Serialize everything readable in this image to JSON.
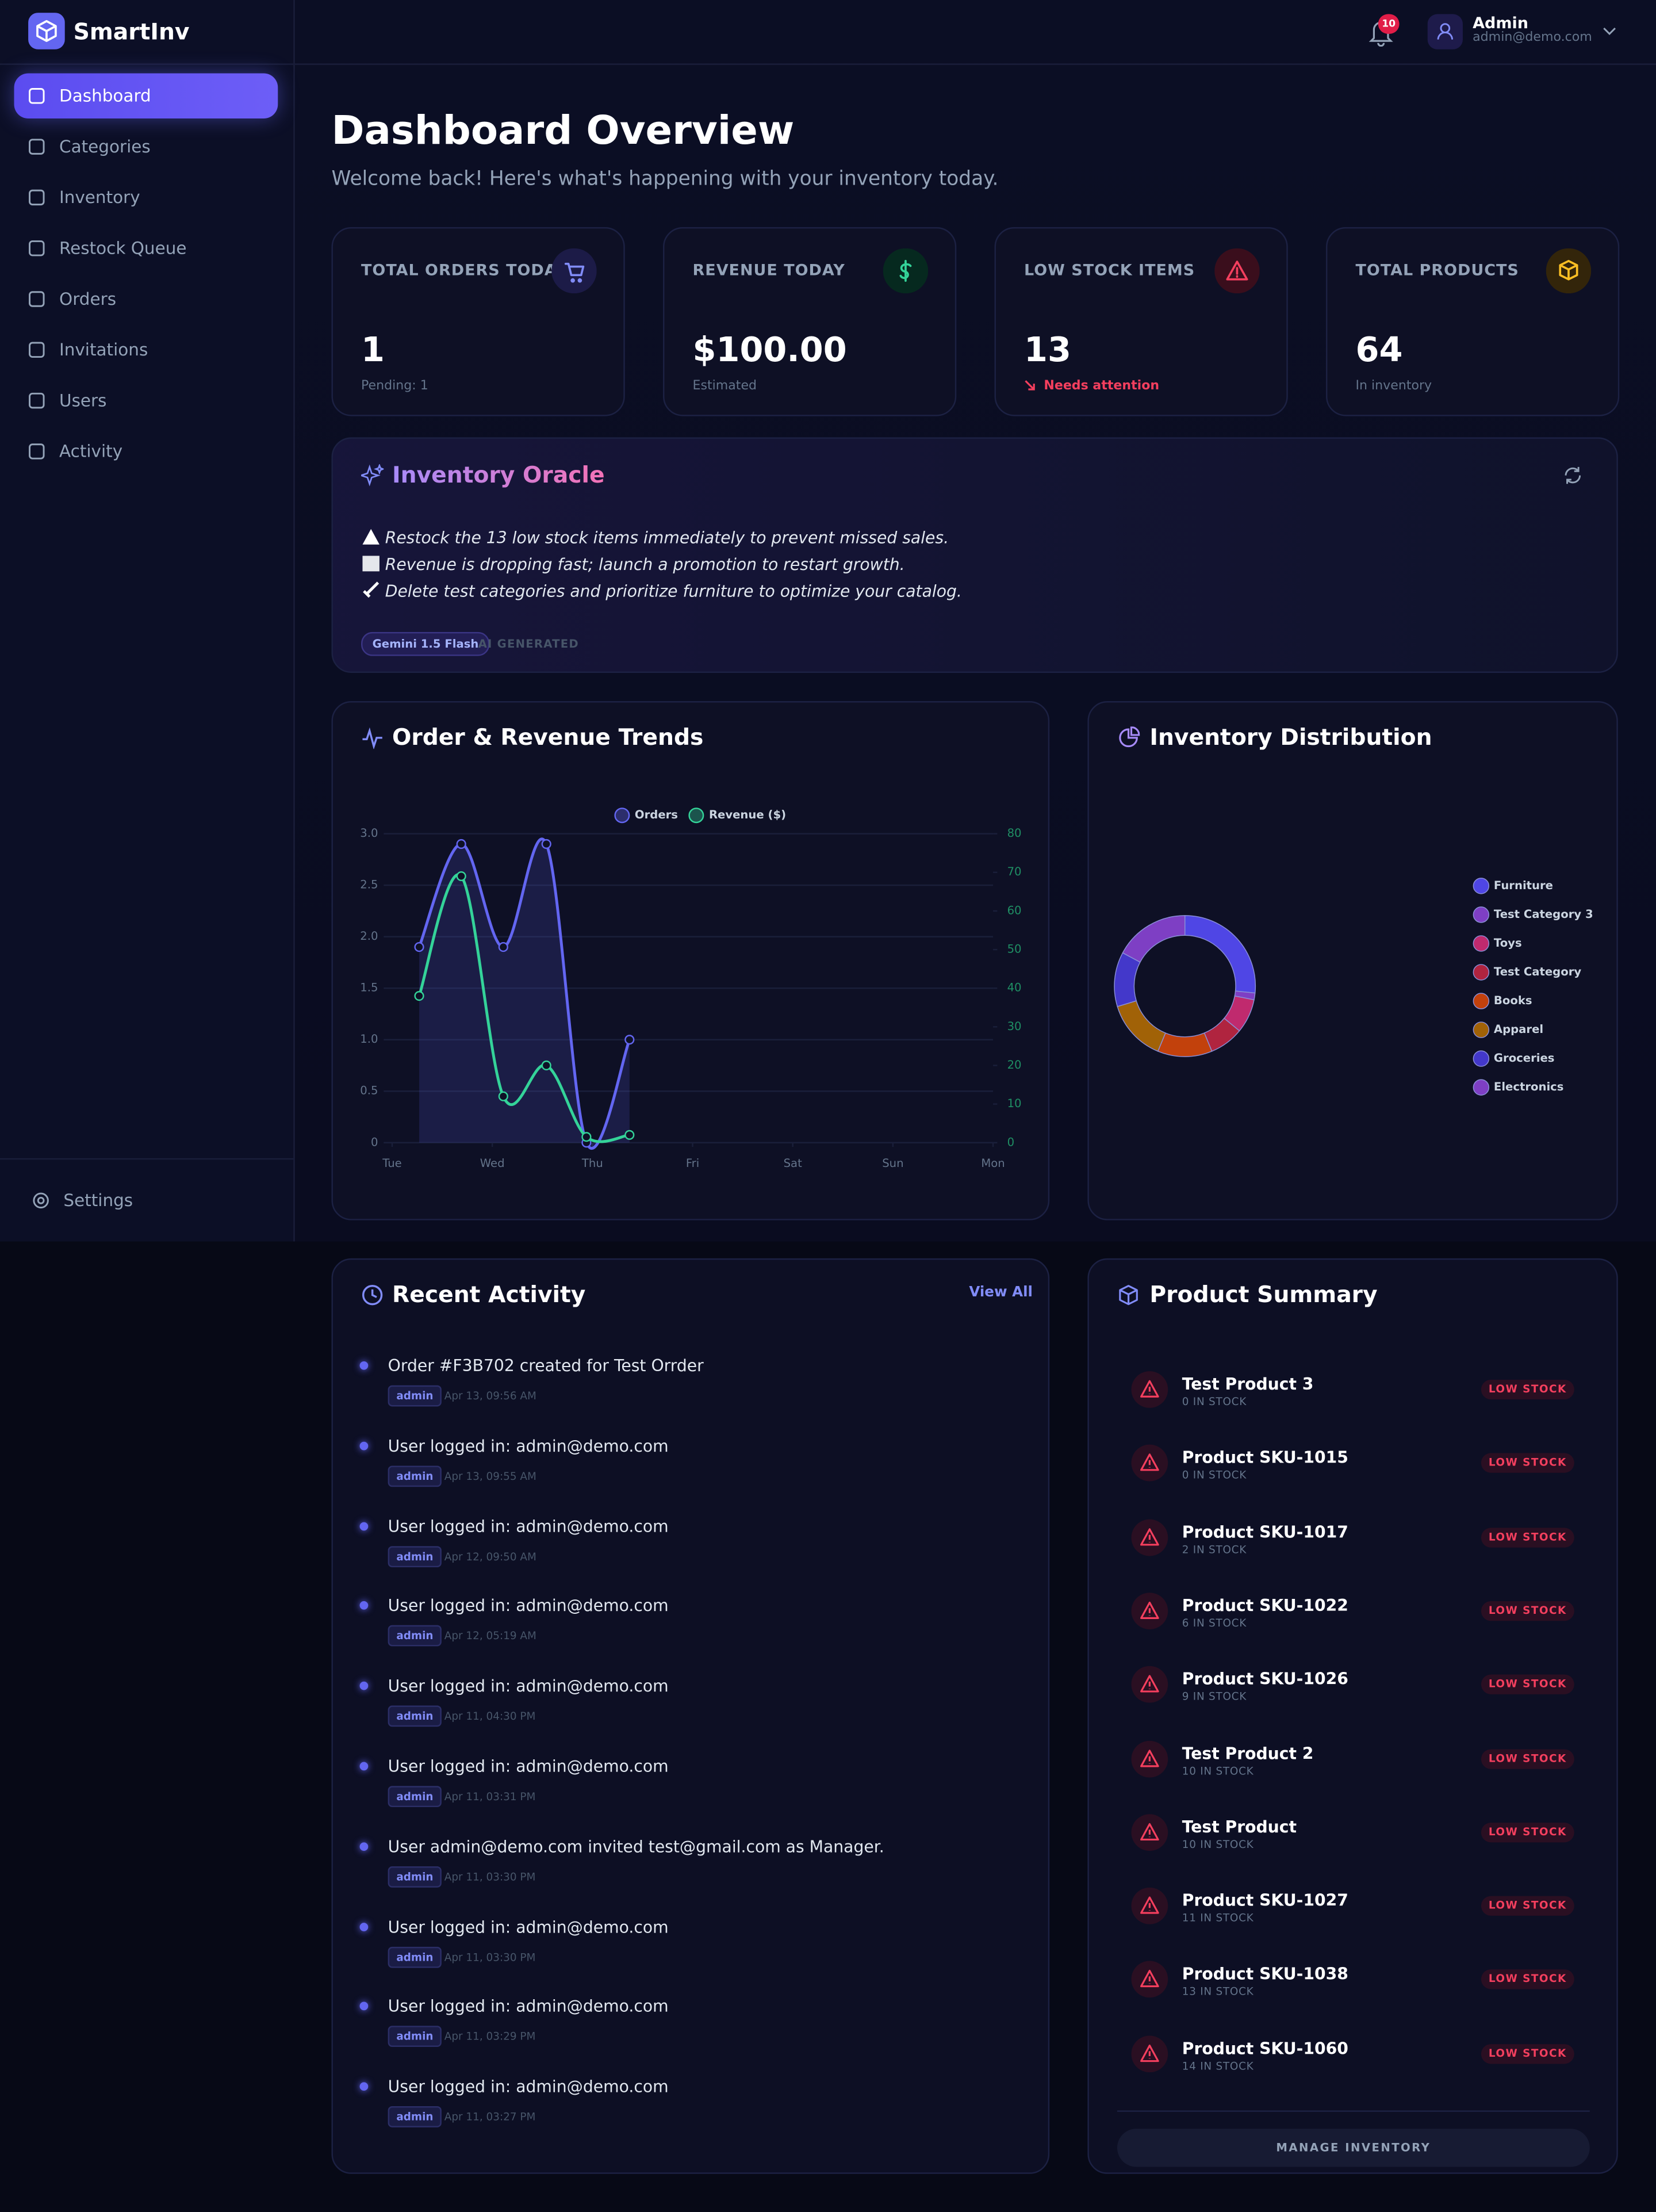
{
  "sidebar": {
    "brand": "SmartInv",
    "nav": [
      "Dashboard",
      "Categories",
      "Inventory",
      "Restock Queue",
      "Orders",
      "Invitations",
      "Users",
      "Activity"
    ],
    "settings": "Settings"
  },
  "header": {
    "notifications": "10",
    "user_name": "Admin",
    "user_email": "admin@demo.com"
  },
  "page": {
    "title": "Dashboard Overview",
    "subtitle": "Welcome back! Here's what's happening with your inventory today."
  },
  "stats": [
    {
      "label": "TOTAL ORDERS TODAY",
      "value": "1",
      "note": "Pending: 1"
    },
    {
      "label": "REVENUE TODAY",
      "value": "$100.00",
      "note": "Estimated"
    },
    {
      "label": "LOW STOCK ITEMS",
      "value": "13",
      "note": "Needs attention"
    },
    {
      "label": "TOTAL PRODUCTS",
      "value": "64",
      "note": "In inventory"
    }
  ],
  "oracle": {
    "title": "Inventory Oracle",
    "insights": [
      "Restock the 13 low stock items immediately to prevent missed sales.",
      "Revenue is dropping fast; launch a promotion to restart growth.",
      "Delete test categories and prioritize furniture to optimize your catalog."
    ],
    "model": "Gemini 1.5 Flash",
    "tag": "AI GENERATED"
  },
  "chart_data": [
    {
      "type": "line",
      "title": "Order & Revenue Trends",
      "x": [
        0.27,
        0.69,
        1.11,
        1.54,
        1.94,
        2.37
      ],
      "xlim": [
        0,
        6
      ],
      "xticks": [
        {
          "value": 0,
          "label": "Tue"
        },
        {
          "value": 1,
          "label": "Wed"
        },
        {
          "value": 2,
          "label": "Thu"
        },
        {
          "value": 3,
          "label": "Fri"
        },
        {
          "value": 4,
          "label": "Sat"
        },
        {
          "value": 5,
          "label": "Sun"
        },
        {
          "value": 6,
          "label": "Mon"
        }
      ],
      "ylim": [
        0,
        3
      ],
      "yticks": [
        0,
        0.5,
        {
          "value": 1,
          "label": "1.0"
        },
        1.5,
        {
          "value": 2,
          "label": "2.0"
        },
        2.5,
        {
          "value": 3,
          "label": "3.0"
        }
      ],
      "y2lim": [
        0,
        80
      ],
      "y2ticks": [
        0,
        10,
        20,
        30,
        40,
        50,
        60,
        70,
        80
      ],
      "grid": true,
      "legend": "top",
      "series": [
        {
          "name": "Orders",
          "color": "#6366f1",
          "area": true,
          "values": [
            1.9,
            2.9,
            1.9,
            2.9,
            0,
            1.0
          ]
        },
        {
          "name": "Revenue ($)",
          "color": "#34d399",
          "axis": "y2",
          "values": [
            38,
            69,
            12,
            20,
            1.5,
            2
          ]
        }
      ]
    },
    {
      "type": "doughnut",
      "title": "Inventory Distribution",
      "legend": "right",
      "categories": [
        "Furniture",
        "Test Category 3",
        "Toys",
        "Test Category",
        "Books",
        "Apparel",
        "Groceries",
        "Electronics"
      ],
      "values": [
        17,
        1,
        5,
        5,
        8,
        9,
        8,
        11
      ],
      "colors": [
        "#4f46e5",
        "#7e3fc4",
        "#c02a6e",
        "#b0243f",
        "#c2410c",
        "#a16207",
        "#4338ca",
        "#7e3fc4"
      ]
    }
  ],
  "activity": {
    "title": "Recent Activity",
    "link": "View All",
    "items": [
      {
        "text": "Order #F3B702 created for Test Orrder",
        "user": "admin",
        "time": "Apr 13, 09:56 AM"
      },
      {
        "text": "User logged in: admin@demo.com",
        "user": "admin",
        "time": "Apr 13, 09:55 AM"
      },
      {
        "text": "User logged in: admin@demo.com",
        "user": "admin",
        "time": "Apr 12, 09:50 AM"
      },
      {
        "text": "User logged in: admin@demo.com",
        "user": "admin",
        "time": "Apr 12, 05:19 AM"
      },
      {
        "text": "User logged in: admin@demo.com",
        "user": "admin",
        "time": "Apr 11, 04:30 PM"
      },
      {
        "text": "User logged in: admin@demo.com",
        "user": "admin",
        "time": "Apr 11, 03:31 PM"
      },
      {
        "text": "User admin@demo.com invited test@gmail.com as Manager.",
        "user": "admin",
        "time": "Apr 11, 03:30 PM"
      },
      {
        "text": "User logged in: admin@demo.com",
        "user": "admin",
        "time": "Apr 11, 03:30 PM"
      },
      {
        "text": "User logged in: admin@demo.com",
        "user": "admin",
        "time": "Apr 11, 03:29 PM"
      },
      {
        "text": "User logged in: admin@demo.com",
        "user": "admin",
        "time": "Apr 11, 03:27 PM"
      }
    ]
  },
  "products": {
    "title": "Product Summary",
    "items": [
      {
        "name": "Test Product 3",
        "stock": "0 IN STOCK",
        "status": "LOW STOCK"
      },
      {
        "name": "Product SKU-1015",
        "stock": "0 IN STOCK",
        "status": "LOW STOCK"
      },
      {
        "name": "Product SKU-1017",
        "stock": "2 IN STOCK",
        "status": "LOW STOCK"
      },
      {
        "name": "Product SKU-1022",
        "stock": "6 IN STOCK",
        "status": "LOW STOCK"
      },
      {
        "name": "Product SKU-1026",
        "stock": "9 IN STOCK",
        "status": "LOW STOCK"
      },
      {
        "name": "Test Product 2",
        "stock": "10 IN STOCK",
        "status": "LOW STOCK"
      },
      {
        "name": "Test Product",
        "stock": "10 IN STOCK",
        "status": "LOW STOCK"
      },
      {
        "name": "Product SKU-1027",
        "stock": "11 IN STOCK",
        "status": "LOW STOCK"
      },
      {
        "name": "Product SKU-1038",
        "stock": "13 IN STOCK",
        "status": "LOW STOCK"
      },
      {
        "name": "Product SKU-1060",
        "stock": "14 IN STOCK",
        "status": "LOW STOCK"
      }
    ],
    "button": "MANAGE INVENTORY"
  }
}
